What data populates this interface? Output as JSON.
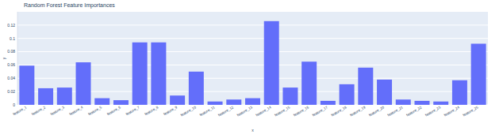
{
  "chart_data": {
    "type": "bar",
    "title": "Random Forest Feature Importances",
    "x_label": "x",
    "y_label": "y",
    "categories": [
      "feature_1",
      "feature_2",
      "feature_3",
      "feature_4",
      "feature_5",
      "feature_6",
      "feature_7",
      "feature_8",
      "feature_9",
      "feature_10",
      "feature_11",
      "feature_12",
      "feature_13",
      "feature_14",
      "feature_15",
      "feature_16",
      "feature_17",
      "feature_18",
      "feature_19",
      "feature_20",
      "feature_21",
      "feature_22",
      "feature_23",
      "feature_24",
      "feature_25"
    ],
    "values": [
      0.059,
      0.025,
      0.026,
      0.064,
      0.01,
      0.007,
      0.094,
      0.094,
      0.014,
      0.05,
      0.005,
      0.008,
      0.01,
      0.126,
      0.026,
      0.065,
      0.006,
      0.031,
      0.056,
      0.038,
      0.008,
      0.006,
      0.005,
      0.037,
      0.092
    ],
    "color": "#636efa",
    "ylim": [
      0,
      0.14
    ],
    "yticks": [
      0,
      0.02,
      0.04,
      0.06,
      0.08,
      0.1,
      0.12
    ],
    "grid": true
  }
}
